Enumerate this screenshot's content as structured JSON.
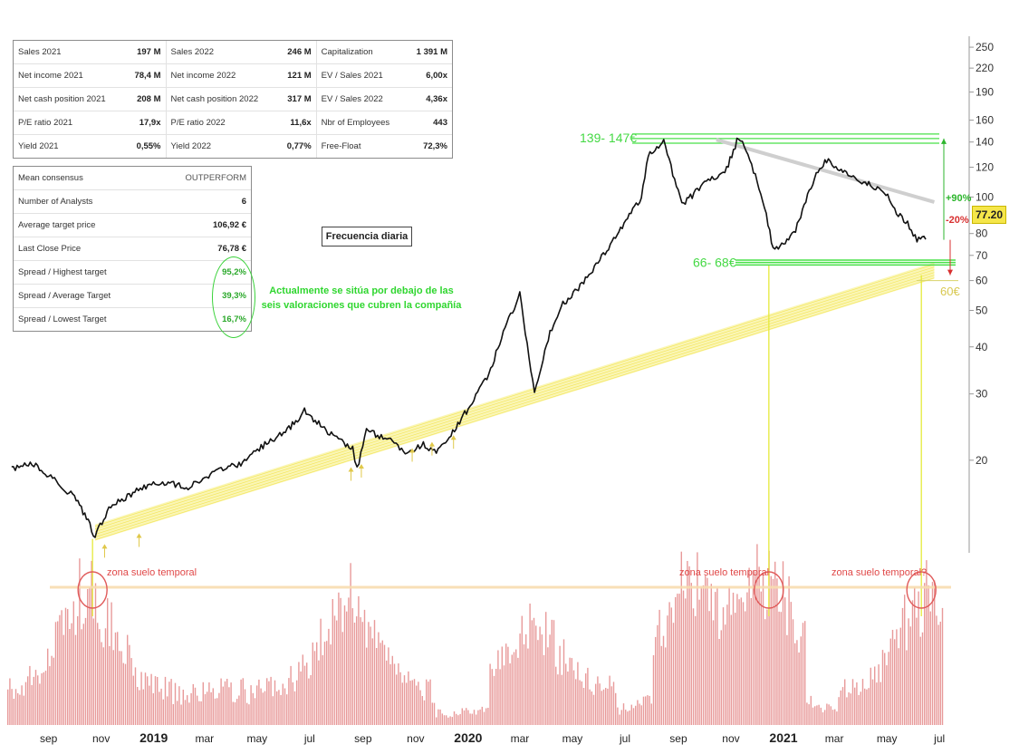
{
  "fundamentals_table": {
    "rows": [
      {
        "l1": "Sales 2021",
        "v1": "197 M",
        "l2": "Sales 2022",
        "v2": "246 M",
        "l3": "Capitalization",
        "v3": "1 391 M"
      },
      {
        "l1": "Net income 2021",
        "v1": "78,4 M",
        "l2": "Net income 2022",
        "v2": "121 M",
        "l3": "EV / Sales 2021",
        "v3": "6,00x"
      },
      {
        "l1": "Net cash position 2021",
        "v1": "208 M",
        "l2": "Net cash position 2022",
        "v2": "317 M",
        "l3": "EV / Sales 2022",
        "v3": "4,36x"
      },
      {
        "l1": "P/E ratio 2021",
        "v1": "17,9x",
        "l2": "P/E ratio 2022",
        "v2": "11,6x",
        "l3": "Nbr of Employees",
        "v3": "443"
      },
      {
        "l1": "Yield 2021",
        "v1": "0,55%",
        "l2": "Yield 2022",
        "v2": "0,77%",
        "l3": "Free-Float",
        "v3": "72,3%"
      }
    ]
  },
  "consensus_table": {
    "rows": [
      {
        "label": "Mean consensus",
        "value": "OUTPERFORM"
      },
      {
        "label": "Number of Analysts",
        "value": "6"
      },
      {
        "label": "Average target price",
        "value": "106,92 €"
      },
      {
        "label": "Last Close Price",
        "value": "76,78 €"
      },
      {
        "label": "Spread / Highest target",
        "value": "95,2%"
      },
      {
        "label": "Spread / Average Target",
        "value": "39,3%"
      },
      {
        "label": "Spread / Lowest Target",
        "value": "16,7%"
      }
    ]
  },
  "annotations": {
    "frequency_label": "Frecuencia diaria",
    "note_text": "Actualmente se sitúa por debajo de las seis valoraciones que cubren la compañía",
    "resistance_label": "139- 147€",
    "support_label": "66- 68€",
    "trend_support_label": "60€",
    "upside_label": "+90%",
    "downside_label": "-20%",
    "last_price": "77.20",
    "zone_labels": [
      "zona suelo temporal",
      "zona suelo temporal",
      "zona suelo temporal?"
    ]
  },
  "colors": {
    "price_line": "#111111",
    "volume_bars": "#e89a9a",
    "trend_channel": "#f6ef7a",
    "support_resistance": "#48e048",
    "note_green": "#2fd62f",
    "zone_text": "#e04848",
    "descending_line": "#cfcfcf"
  },
  "chart_data": {
    "type": "line",
    "scale": "log",
    "ylabel": "",
    "ylim": [
      12,
      260
    ],
    "y_ticks": [
      250,
      220,
      190,
      160,
      140,
      120,
      100,
      80,
      70,
      60,
      50,
      40,
      30,
      20
    ],
    "y_tick_labels": [
      "250",
      "220",
      "190",
      "160",
      "140",
      "120",
      "100",
      "80",
      "70",
      "60",
      "50",
      "40",
      "30",
      "20"
    ],
    "x_tick_labels": [
      "sep",
      "nov",
      "2019",
      "mar",
      "may",
      "jul",
      "sep",
      "nov",
      "2020",
      "mar",
      "may",
      "jul",
      "sep",
      "nov",
      "2021",
      "mar",
      "may",
      "jul"
    ],
    "x_tick_dates": [
      "2018-09",
      "2018-11",
      "2019-01",
      "2019-03",
      "2019-05",
      "2019-07",
      "2019-09",
      "2019-11",
      "2020-01",
      "2020-03",
      "2020-05",
      "2020-07",
      "2020-09",
      "2020-11",
      "2021-01",
      "2021-03",
      "2021-05",
      "2021-07"
    ],
    "x_bold_labels": [
      "2019",
      "2020",
      "2021"
    ],
    "series": [
      {
        "values_x": [
          "2018-07-20",
          "2018-08-15",
          "2018-09-10",
          "2018-10-01",
          "2018-10-15",
          "2018-10-25",
          "2018-11-10",
          "2018-12-10",
          "2019-01-05",
          "2019-02-10",
          "2019-03-10",
          "2019-04-10",
          "2019-05-10",
          "2019-06-05",
          "2019-06-25",
          "2019-07-20",
          "2019-08-20",
          "2019-08-25",
          "2019-09-05",
          "2019-10-05",
          "2019-10-20",
          "2019-11-10",
          "2019-11-25",
          "2019-12-10",
          "2019-12-30",
          "2020-01-25",
          "2020-02-15",
          "2020-03-01",
          "2020-03-18",
          "2020-04-05",
          "2020-04-20",
          "2020-05-10",
          "2020-06-10",
          "2020-06-30",
          "2020-07-10",
          "2020-07-20",
          "2020-07-28",
          "2020-08-15",
          "2020-09-05",
          "2020-09-25",
          "2020-10-10",
          "2020-10-25",
          "2020-11-10",
          "2020-11-25",
          "2020-12-10",
          "2020-12-20",
          "2021-01-05",
          "2021-01-15",
          "2021-01-25",
          "2021-02-10",
          "2021-02-20",
          "2021-03-05",
          "2021-03-25",
          "2021-04-10",
          "2021-04-30",
          "2021-05-10",
          "2021-05-25",
          "2021-06-05",
          "2021-06-15"
        ],
        "values": [
          19,
          19.5,
          17.5,
          16,
          14,
          12.5,
          15,
          16.5,
          17.5,
          17,
          18.5,
          19.5,
          22,
          24,
          27,
          24,
          21.5,
          19,
          24,
          22.5,
          21,
          22,
          21,
          23,
          27,
          34,
          46,
          55,
          30,
          44,
          52,
          58,
          72,
          85,
          92,
          100,
          130,
          140,
          95,
          105,
          112,
          115,
          145,
          122,
          95,
          72,
          76,
          82,
          95,
          118,
          125,
          120,
          112,
          108,
          102,
          92,
          85,
          77,
          77.2
        ]
      }
    ],
    "trend_channel": {
      "x_start": "2018-10-25",
      "y_start": 12.5,
      "x_end": "2021-06-25",
      "y_end": 62
    },
    "resistance_zone": [
      139,
      147
    ],
    "support_zone": [
      66,
      68
    ],
    "descending_resistance": {
      "x_start": "2020-10-15",
      "y_start": 142,
      "x_end": "2021-06-25",
      "y_end": 97
    },
    "volume": {
      "period": "daily",
      "peaks": [
        "2018-10",
        "2019-08",
        "2020-03",
        "2020-09",
        "2020-12",
        "2021-06"
      ]
    }
  }
}
